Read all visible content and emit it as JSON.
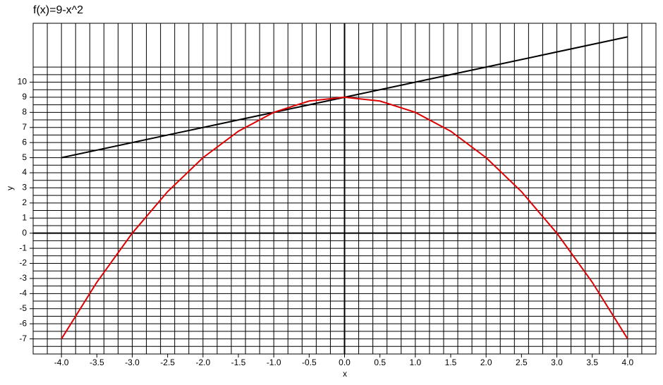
{
  "chart_data": {
    "type": "line",
    "title": "f(x)=9-x^2",
    "x_label": "x",
    "y_label": "y",
    "xlim": [
      -4.4,
      4.4
    ],
    "ylim": [
      -8,
      13.9
    ],
    "xticks": [
      {
        "value": -4,
        "label": "-4.0"
      },
      {
        "value": -3.5,
        "label": "-3.5"
      },
      {
        "value": -3,
        "label": "-3.0"
      },
      {
        "value": -2.5,
        "label": "-2.5"
      },
      {
        "value": -2,
        "label": "-2.0"
      },
      {
        "value": -1.5,
        "label": "-1.5"
      },
      {
        "value": -1,
        "label": "-1.0"
      },
      {
        "value": -0.5,
        "label": "-0.5"
      },
      {
        "value": 0,
        "label": "0.0"
      },
      {
        "value": 0.5,
        "label": "0.5"
      },
      {
        "value": 1,
        "label": "1.0"
      },
      {
        "value": 1.5,
        "label": "1.5"
      },
      {
        "value": 2,
        "label": "2.0"
      },
      {
        "value": 2.5,
        "label": "2.5"
      },
      {
        "value": 3,
        "label": "3.0"
      },
      {
        "value": 3.5,
        "label": "3.5"
      },
      {
        "value": 4,
        "label": "4.0"
      }
    ],
    "yticks": [
      -7,
      -6,
      -5,
      -4,
      -3,
      -2,
      -1,
      0,
      1,
      2,
      3,
      4,
      5,
      6,
      7,
      8,
      9,
      10
    ],
    "grid": true,
    "series": [
      {
        "color": "#000000",
        "x": [
          -4,
          4
        ],
        "values": [
          5,
          13
        ]
      },
      {
        "color": "#dd0000",
        "x": [
          -4,
          -3.5,
          -3,
          -2.5,
          -2,
          -1.5,
          -1,
          -0.5,
          0,
          0.5,
          1,
          1.5,
          2,
          2.5,
          3,
          3.5,
          4
        ],
        "values": [
          -7,
          -3.25,
          0,
          2.75,
          5,
          6.75,
          8,
          8.75,
          9,
          8.75,
          8,
          6.75,
          5,
          2.75,
          0,
          -3.25,
          -7
        ]
      }
    ]
  }
}
